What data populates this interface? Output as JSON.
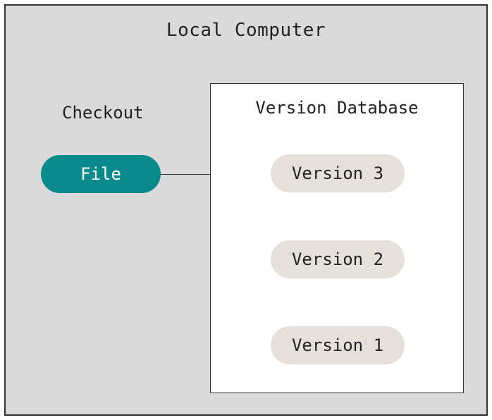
{
  "diagram": {
    "type": "flowchart",
    "title": "Local Computer",
    "background_color": "#dadada",
    "border_color": "#333333",
    "font_family": "monospace",
    "title_fontsize": 26,
    "checkout": {
      "label": "Checkout",
      "label_fontsize": 24,
      "node": {
        "label": "File",
        "bg_color": "#0a8a8a",
        "text_color": "#ffffff",
        "fontsize": 24,
        "width": 170,
        "height": 54,
        "border_radius": 999
      }
    },
    "database": {
      "title": "Version Database",
      "title_fontsize": 24,
      "box_bg": "#ffffff",
      "box_border": "#333333",
      "nodes": [
        {
          "id": "v3",
          "label": "Version 3",
          "bg_color": "#e6e0da",
          "text_color": "#222222"
        },
        {
          "id": "v2",
          "label": "Version 2",
          "bg_color": "#e6e0da",
          "text_color": "#222222"
        },
        {
          "id": "v1",
          "label": "Version 1",
          "bg_color": "#e6e0da",
          "text_color": "#222222"
        }
      ],
      "node_style": {
        "width": 190,
        "height": 54,
        "border_radius": 999,
        "fontsize": 24
      }
    },
    "edges": [
      {
        "from": "file",
        "to": "v3",
        "color": "#333333"
      },
      {
        "from": "v3",
        "to": "v2",
        "color": "#333333"
      },
      {
        "from": "v2",
        "to": "v1",
        "color": "#333333"
      }
    ]
  }
}
